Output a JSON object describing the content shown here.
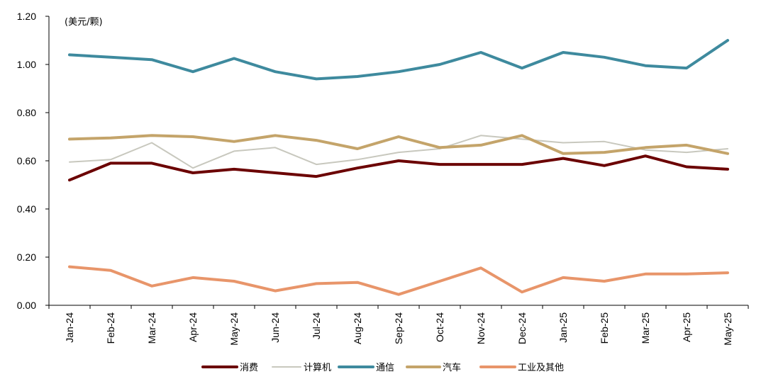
{
  "chart_data": {
    "type": "line",
    "unit_label": "(美元/颗)",
    "ylim": [
      0,
      1.2
    ],
    "yticks": [
      "0.00",
      "0.20",
      "0.40",
      "0.60",
      "0.80",
      "1.00",
      "1.20"
    ],
    "grid": false,
    "legend_position": "bottom",
    "categories": [
      "Jan-24",
      "Feb-24",
      "Mar-24",
      "Apr-24",
      "May-24",
      "Jun-24",
      "Jul-24",
      "Aug-24",
      "Sep-24",
      "Oct-24",
      "Nov-24",
      "Dec-24",
      "Jan-25",
      "Feb-25",
      "Mar-25",
      "Apr-25",
      "May-25"
    ],
    "series": [
      {
        "name": "消费",
        "color": "#6b0000",
        "values": [
          0.52,
          0.59,
          0.59,
          0.55,
          0.565,
          0.55,
          0.535,
          0.57,
          0.6,
          0.585,
          0.585,
          0.585,
          0.61,
          0.58,
          0.62,
          0.575,
          0.565
        ]
      },
      {
        "name": "计算机",
        "color": "#c8c8be",
        "values": [
          0.595,
          0.605,
          0.675,
          0.57,
          0.64,
          0.655,
          0.585,
          0.605,
          0.635,
          0.65,
          0.705,
          0.69,
          0.675,
          0.68,
          0.645,
          0.635,
          0.65
        ]
      },
      {
        "name": "通信",
        "color": "#3e8a9e",
        "values": [
          1.04,
          1.03,
          1.02,
          0.97,
          1.025,
          0.97,
          0.94,
          0.95,
          0.97,
          1.0,
          1.05,
          0.985,
          1.05,
          1.03,
          0.995,
          0.985,
          1.1
        ]
      },
      {
        "name": "汽车",
        "color": "#c4a46a",
        "values": [
          0.69,
          0.695,
          0.705,
          0.7,
          0.68,
          0.705,
          0.685,
          0.65,
          0.7,
          0.655,
          0.665,
          0.705,
          0.63,
          0.635,
          0.655,
          0.665,
          0.63
        ]
      },
      {
        "name": "工业及其他",
        "color": "#e8956a",
        "values": [
          0.16,
          0.145,
          0.08,
          0.115,
          0.1,
          0.06,
          0.09,
          0.095,
          0.045,
          0.1,
          0.155,
          0.055,
          0.115,
          0.1,
          0.13,
          0.13,
          0.135
        ]
      }
    ]
  }
}
